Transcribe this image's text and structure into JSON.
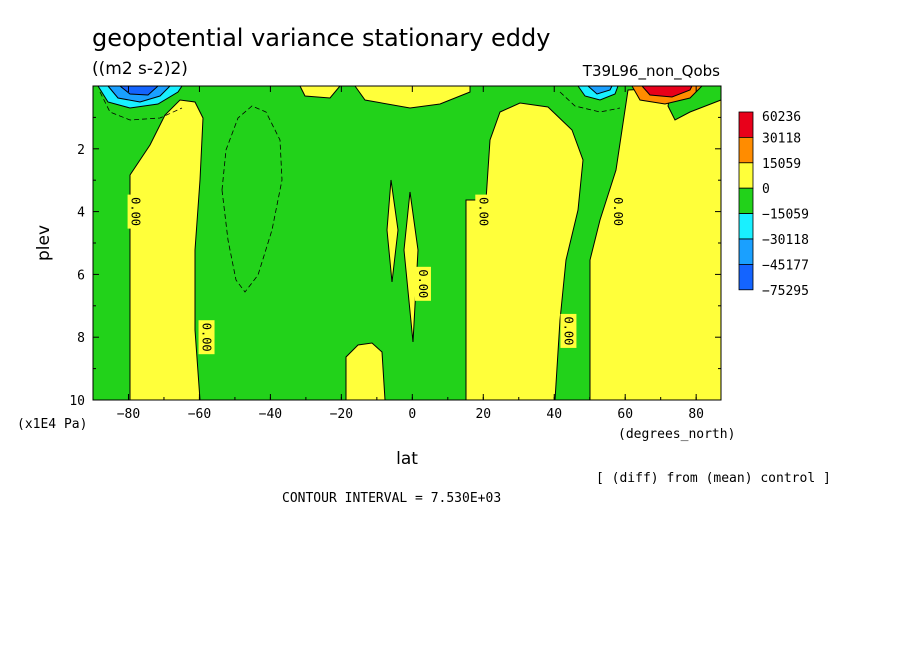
{
  "chart_data": {
    "type": "heatmap",
    "title": "geopotential variance stationary eddy",
    "units": "((m2 s-2)2)",
    "run_label": "T39L96_non_Qobs",
    "xlabel": "lat",
    "x_units": "(degrees_north)",
    "ylabel": "plev",
    "y_units": "(x1E4 Pa)",
    "xlim": [
      -90,
      87
    ],
    "ylim": [
      10,
      0
    ],
    "x_ticks": [
      -80,
      -60,
      -40,
      -20,
      0,
      20,
      40,
      60,
      80
    ],
    "y_ticks": [
      2,
      4,
      6,
      8,
      10
    ],
    "x_tick_labels": [
      "−80",
      "−60",
      "−40",
      "−20",
      "0",
      "20",
      "40",
      "60",
      "80"
    ],
    "y_tick_labels": [
      "2",
      "4",
      "6",
      "8",
      "10"
    ],
    "contour_interval_text": "CONTOUR INTERVAL = 7.530E+03",
    "comparison_note": "[ (diff) from (mean) control ]",
    "colorbar": {
      "levels": [
        "60236",
        "30118",
        "15059",
        "0",
        "−15059",
        "−30118",
        "−45177",
        "−75295"
      ],
      "colors": [
        "#e8001a",
        "#ff8c00",
        "#ffff3a",
        "#22d21a",
        "#19f0ff",
        "#1aa0ff",
        "#1464ff"
      ]
    },
    "contour_labels": [
      {
        "text": "0.00",
        "lat": -78,
        "plev": 4
      },
      {
        "text": "0.00",
        "lat": -58,
        "plev": 8
      },
      {
        "text": "0.00",
        "lat": 3,
        "plev": 6.3
      },
      {
        "text": "0.00",
        "lat": 20,
        "plev": 4
      },
      {
        "text": "0.00",
        "lat": 44,
        "plev": 7.8
      },
      {
        "text": "0.00",
        "lat": 58,
        "plev": 4
      }
    ],
    "regions": [
      {
        "value_band": "0 to 15059",
        "lat_range": [
          -80,
          -59
        ],
        "plev_range": [
          0.6,
          10
        ]
      },
      {
        "value_band": "0 to 15059",
        "lat_range": [
          -5,
          -15
        ],
        "plev_range": [
          7.8,
          10
        ]
      },
      {
        "value_band": "0 to 15059",
        "lat_range": [
          -2,
          2
        ],
        "plev_range": [
          3,
          8
        ]
      },
      {
        "value_band": "0 to 15059",
        "lat_range": [
          17,
          48
        ],
        "plev_range": [
          0.6,
          10
        ]
      },
      {
        "value_band": "0 to 15059",
        "lat_range": [
          52,
          87
        ],
        "plev_range": [
          0,
          10
        ]
      },
      {
        "value_band": "-15059 to -75295",
        "lat_range": [
          -88,
          -72
        ],
        "plev_range": [
          0,
          0.6
        ]
      },
      {
        "value_band": "-15059 to -30118",
        "lat_range": [
          48,
          58
        ],
        "plev_range": [
          0,
          0.4
        ]
      },
      {
        "value_band": "15059 to 60236",
        "lat_range": [
          62,
          80
        ],
        "plev_range": [
          0,
          0.4
        ]
      }
    ]
  }
}
